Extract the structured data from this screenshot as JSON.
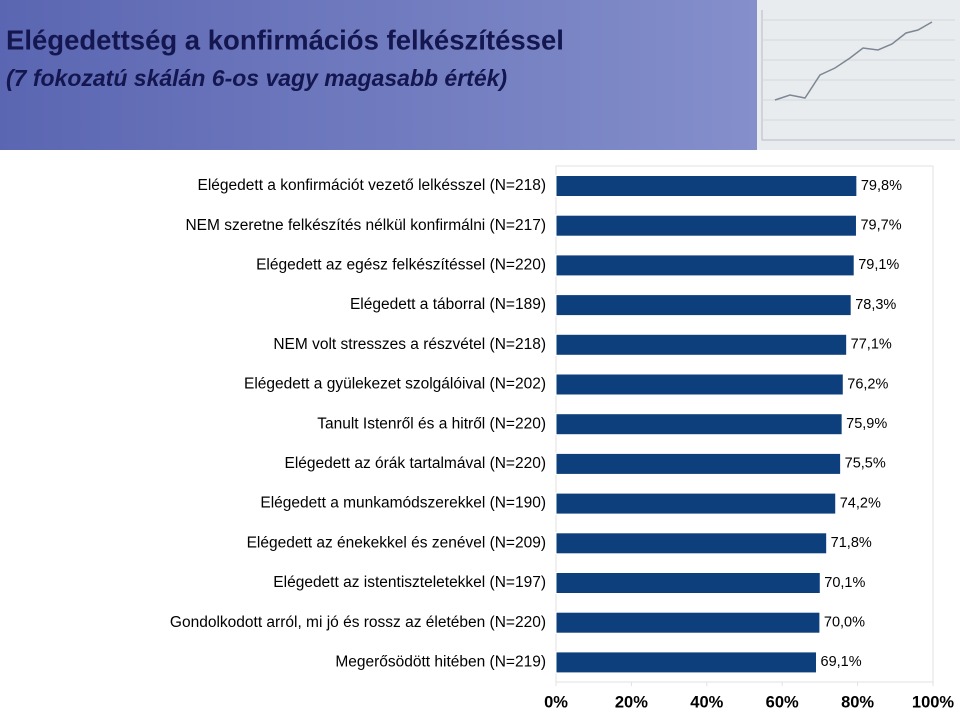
{
  "chart_data": {
    "type": "bar",
    "orientation": "horizontal",
    "title": "Elégedettség a konfirmációs felkészítéssel",
    "subtitle": "(7 fokozatú skálán 6-os vagy magasabb érték)",
    "categories": [
      "Elégedett a konfirmációt vezető lelkésszel (N=218)",
      "NEM szeretne felkészítés nélkül konfirmálni (N=217)",
      "Elégedett az egész felkészítéssel (N=220)",
      "Elégedett a táborral (N=189)",
      "NEM volt stresszes a részvétel (N=218)",
      "Elégedett a gyülekezet szolgálóival (N=202)",
      "Tanult Istenről és a hitről (N=220)",
      "Elégedett az órák tartalmával (N=220)",
      "Elégedett a munkamódszerekkel (N=190)",
      "Elégedett az énekekkel és zenével (N=209)",
      "Elégedett az istentiszteletekkel (N=197)",
      "Gondolkodott arról, mi jó és rossz az életében (N=220)",
      "Megerősödött hitében (N=219)"
    ],
    "values": [
      79.8,
      79.7,
      79.1,
      78.3,
      77.1,
      76.2,
      75.9,
      75.5,
      74.2,
      71.8,
      70.1,
      70.0,
      69.1
    ],
    "value_labels": [
      "79,8%",
      "79,7%",
      "79,1%",
      "78,3%",
      "77,1%",
      "76,2%",
      "75,9%",
      "75,5%",
      "74,2%",
      "71,8%",
      "70,1%",
      "70,0%",
      "69,1%"
    ],
    "color": "#0d3f7c",
    "xlim": [
      0,
      100
    ],
    "xticks": [
      {
        "value": 0,
        "label": "0%"
      },
      {
        "value": 20,
        "label": "20%"
      },
      {
        "value": 40,
        "label": "40%"
      },
      {
        "value": 60,
        "label": "60%"
      },
      {
        "value": 80,
        "label": "80%"
      },
      {
        "value": 100,
        "label": "100%"
      }
    ]
  }
}
